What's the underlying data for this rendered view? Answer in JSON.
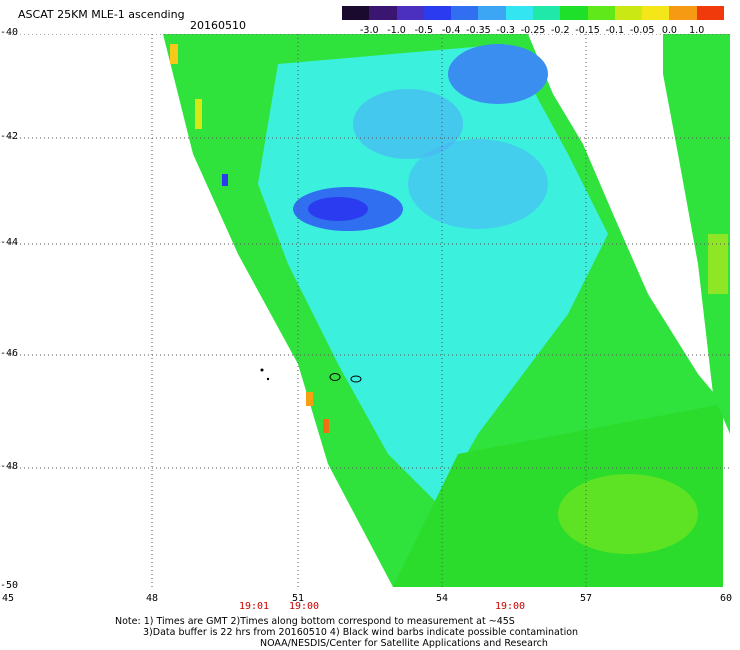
{
  "header": {
    "title": "ASCAT 25KM MLE-1 ascending",
    "date": "20160510"
  },
  "colorbar": {
    "labels": [
      "-3.0",
      "-1.0",
      "-0.5",
      "-0.4",
      "-0.35",
      "-0.3",
      "-0.25",
      "-0.2",
      "-0.15",
      "-0.1",
      "-0.05",
      "0.0",
      "1.0"
    ],
    "colors": [
      "#1a0a2e",
      "#3a1670",
      "#4b2fbf",
      "#2b3cf0",
      "#2f6ff0",
      "#3ca6f5",
      "#33e5f0",
      "#1fe8a8",
      "#1ee02a",
      "#60e81a",
      "#c9e814",
      "#f5e61a",
      "#f59a12",
      "#f03a0c"
    ]
  },
  "axes": {
    "y_labels": [
      "-40",
      "-42",
      "-44",
      "-46",
      "-48",
      "-50"
    ],
    "x_labels": [
      "45",
      "48",
      "51",
      "54",
      "57",
      "60"
    ]
  },
  "times": [
    "19:01",
    "19:00",
    "19:00"
  ],
  "notes": [
    "Note: 1) Times are GMT 2)Times along bottom correspond to measurement at ~45S",
    "3)Data buffer is 22 hrs from 20160510 4) Black wind barbs indicate possible contamination",
    "NOAA/NESDIS/Center for Satellite Applications and Research"
  ]
}
